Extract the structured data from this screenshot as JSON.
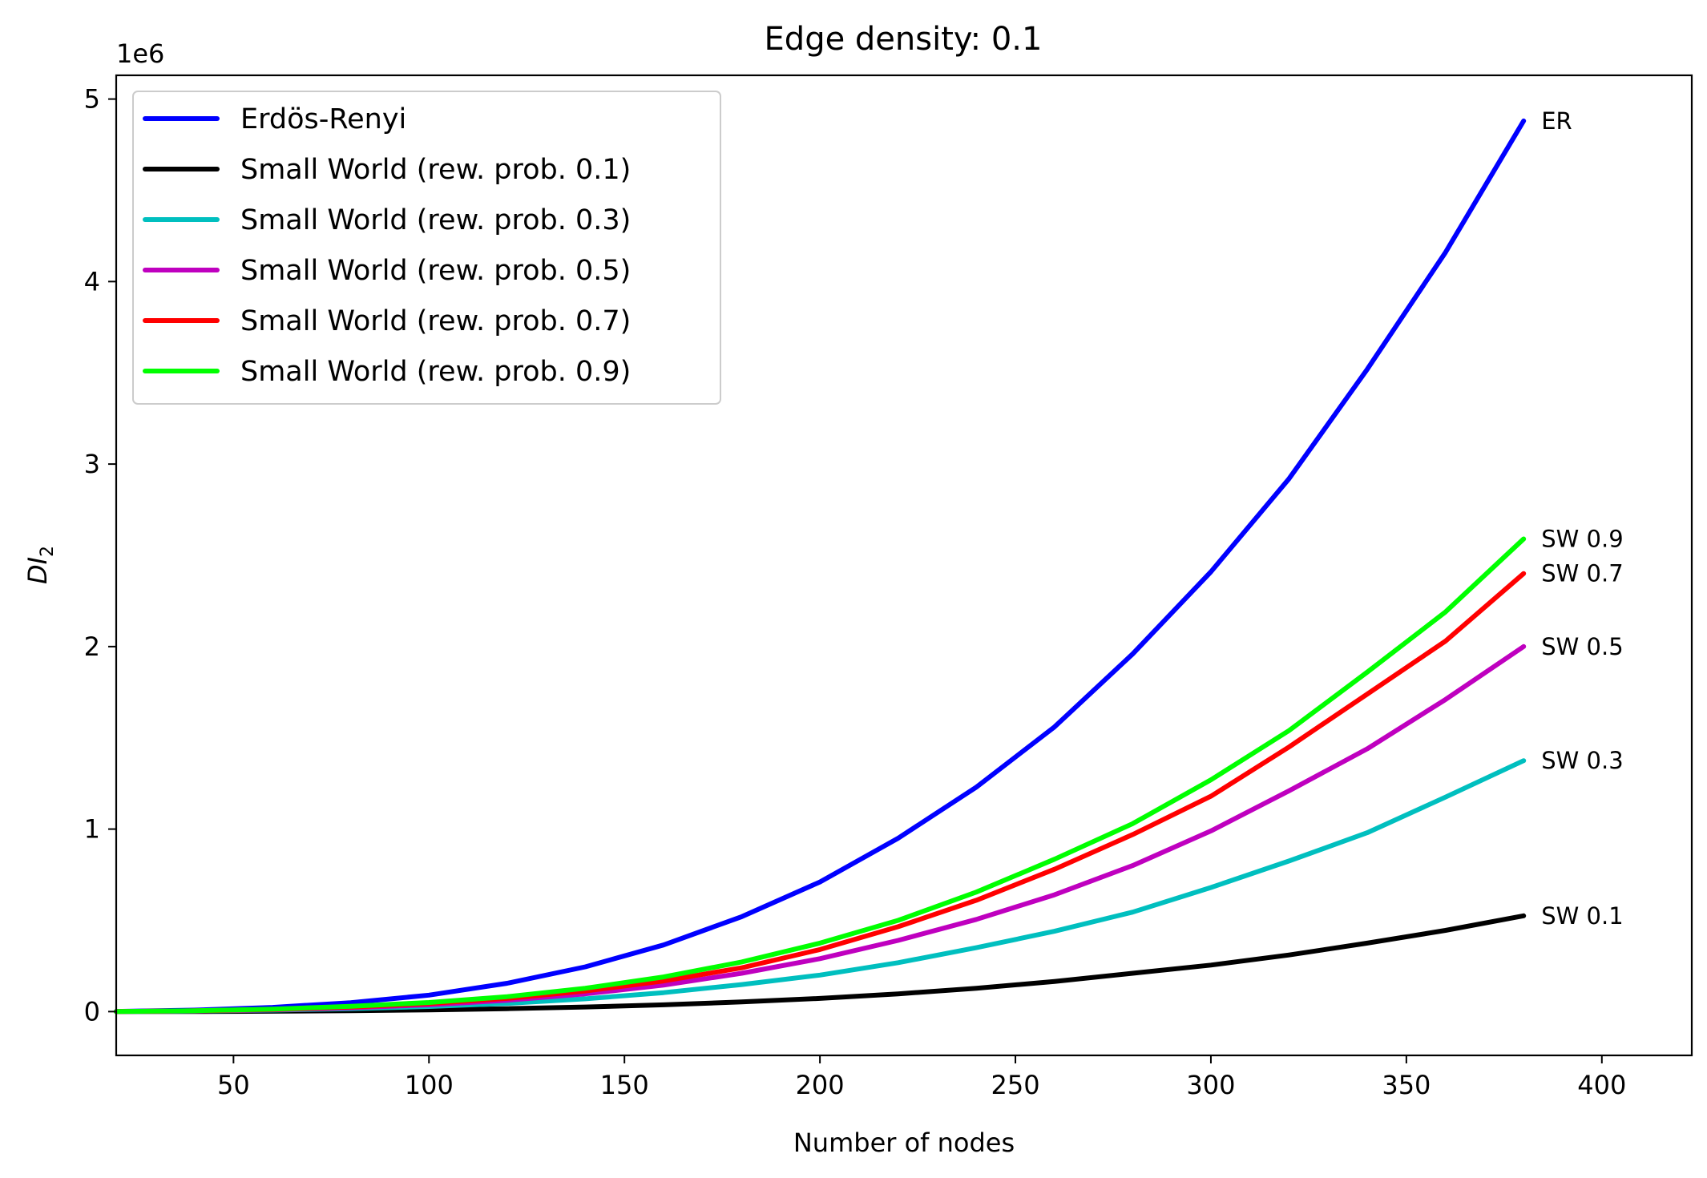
{
  "chart_data": {
    "type": "line",
    "title": "Edge density: 0.1",
    "xlabel": "Number of nodes",
    "ylabel": "DI",
    "ylabel_subscript": "2",
    "y_offset_text": "1e6",
    "xlim": [
      20,
      423
    ],
    "ylim": [
      -0.24,
      5.13
    ],
    "x_ticks": [
      50,
      100,
      150,
      200,
      250,
      300,
      350,
      400
    ],
    "x_tick_labels": [
      "50",
      "100",
      "150",
      "200",
      "250",
      "300",
      "350",
      "400"
    ],
    "y_ticks": [
      0,
      1,
      2,
      3,
      4,
      5
    ],
    "y_tick_labels": [
      "0",
      "1",
      "2",
      "3",
      "4",
      "5"
    ],
    "grid": false,
    "legend_position": "top-left",
    "x": [
      20,
      40,
      60,
      80,
      100,
      120,
      140,
      160,
      180,
      200,
      220,
      240,
      260,
      280,
      300,
      320,
      340,
      360,
      380
    ],
    "series": [
      {
        "name": "Erdös-Renyi",
        "end_label": "ER",
        "color": "#0000ff",
        "values": [
          0.001,
          0.008,
          0.023,
          0.049,
          0.09,
          0.155,
          0.245,
          0.365,
          0.52,
          0.71,
          0.95,
          1.23,
          1.56,
          1.96,
          2.41,
          2.92,
          3.52,
          4.16,
          4.88
        ]
      },
      {
        "name": "Small World (rew. prob. 0.1)",
        "end_label": "SW 0.1",
        "color": "#000000",
        "values": [
          0.0,
          0.0,
          0.002,
          0.005,
          0.009,
          0.016,
          0.025,
          0.037,
          0.053,
          0.072,
          0.097,
          0.128,
          0.165,
          0.21,
          0.255,
          0.31,
          0.375,
          0.445,
          0.525
        ]
      },
      {
        "name": "Small World (rew. prob. 0.3)",
        "end_label": "SW 0.3",
        "color": "#00bfbf",
        "values": [
          0.0,
          0.003,
          0.008,
          0.016,
          0.028,
          0.045,
          0.07,
          0.104,
          0.148,
          0.2,
          0.268,
          0.35,
          0.44,
          0.545,
          0.68,
          0.825,
          0.98,
          1.175,
          1.375
        ]
      },
      {
        "name": "Small World (rew. prob. 0.5)",
        "end_label": "SW 0.5",
        "color": "#bf00bf",
        "values": [
          0.0,
          0.004,
          0.01,
          0.021,
          0.037,
          0.062,
          0.097,
          0.145,
          0.21,
          0.29,
          0.39,
          0.505,
          0.64,
          0.8,
          0.99,
          1.21,
          1.44,
          1.71,
          2.0
        ]
      },
      {
        "name": "Small World (rew. prob. 0.7)",
        "end_label": "SW 0.7",
        "color": "#ff0000",
        "values": [
          0.0,
          0.004,
          0.012,
          0.025,
          0.044,
          0.072,
          0.113,
          0.168,
          0.24,
          0.34,
          0.465,
          0.61,
          0.78,
          0.97,
          1.18,
          1.45,
          1.74,
          2.03,
          2.4
        ]
      },
      {
        "name": "Small World (rew. prob. 0.9)",
        "end_label": "SW 0.9",
        "color": "#00ff00",
        "values": [
          0.0,
          0.005,
          0.014,
          0.029,
          0.05,
          0.082,
          0.128,
          0.19,
          0.272,
          0.375,
          0.5,
          0.655,
          0.835,
          1.03,
          1.27,
          1.54,
          1.86,
          2.19,
          2.59
        ]
      }
    ]
  }
}
